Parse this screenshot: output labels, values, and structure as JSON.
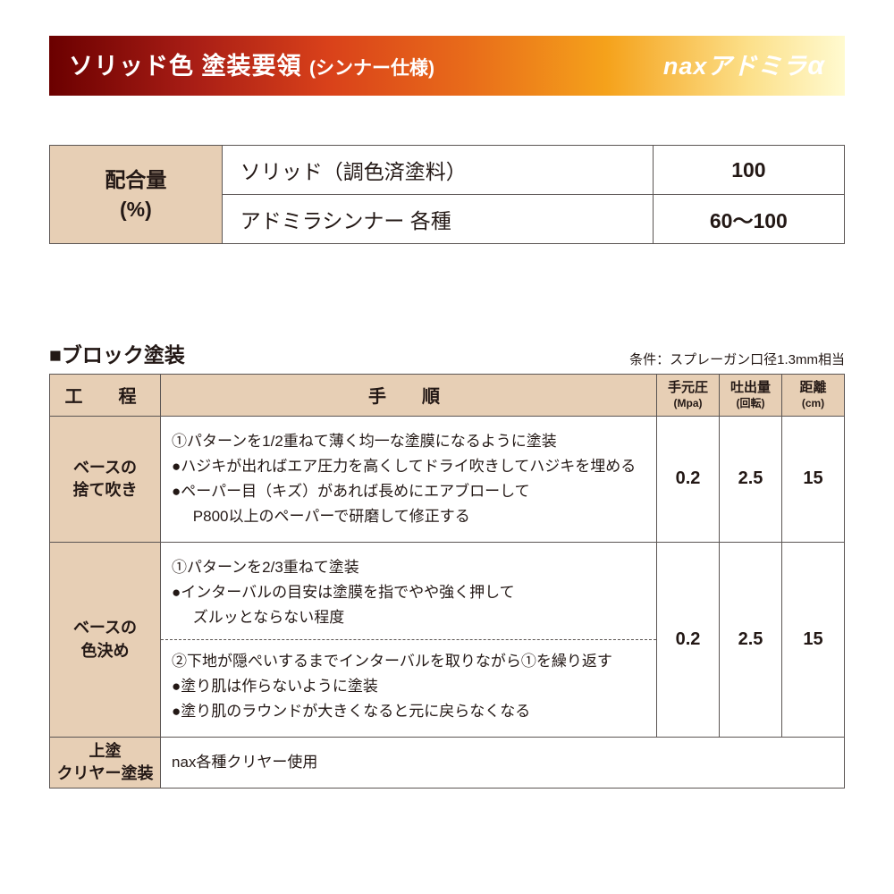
{
  "header": {
    "title": "ソリッド色 塗装要領",
    "subtitle": "(シンナー仕様)",
    "brand_prefix": "nax",
    "brand_main": "アドミラ",
    "brand_alpha": "α"
  },
  "mix": {
    "label_line1": "配合量",
    "label_line2": "(%)",
    "rows": [
      {
        "name": "ソリッド（調色済塗料）",
        "value": "100"
      },
      {
        "name": "アドミラシンナー 各種",
        "value": "60〜100"
      }
    ]
  },
  "block": {
    "title": "■ブロック塗装",
    "condition": "条件：スプレーガン口径1.3mm相当",
    "headers": {
      "process": "工　程",
      "instruction": "手　順",
      "pressure": "手元圧",
      "pressure_unit": "(Mpa)",
      "discharge": "吐出量",
      "discharge_unit": "(回転)",
      "distance": "距離",
      "distance_unit": "(cm)"
    },
    "rows": [
      {
        "proc_l1": "ベースの",
        "proc_l2": "捨て吹き",
        "lines": [
          {
            "t": "①パターンを1/2重ねて薄く均一な塗膜になるように塗装",
            "indent": false
          },
          {
            "t": "●ハジキが出ればエア圧力を高くしてドライ吹きしてハジキを埋める",
            "indent": false
          },
          {
            "t": "●ペーパー目（キズ）があれば長めにエアブローして",
            "indent": false
          },
          {
            "t": "P800以上のペーパーで研磨して修正する",
            "indent": true
          }
        ],
        "pressure": "0.2",
        "discharge": "2.5",
        "distance": "15"
      },
      {
        "proc_l1": "ベースの",
        "proc_l2": "色決め",
        "part1": [
          {
            "t": "①パターンを2/3重ねて塗装",
            "indent": false
          },
          {
            "t": "●インターバルの目安は塗膜を指でやや強く押して",
            "indent": false
          },
          {
            "t": "ズルッとならない程度",
            "indent": true
          }
        ],
        "part2": [
          {
            "t": "②下地が隠ぺいするまでインターバルを取りながら①を繰り返す",
            "indent": false
          },
          {
            "t": "●塗り肌は作らないように塗装",
            "indent": false
          },
          {
            "t": "●塗り肌のラウンドが大きくなると元に戻らなくなる",
            "indent": false
          }
        ],
        "pressure": "0.2",
        "discharge": "2.5",
        "distance": "15"
      },
      {
        "proc_l1": "上塗",
        "proc_l2": "クリヤー塗装",
        "single": "nax各種クリヤー使用"
      }
    ]
  }
}
